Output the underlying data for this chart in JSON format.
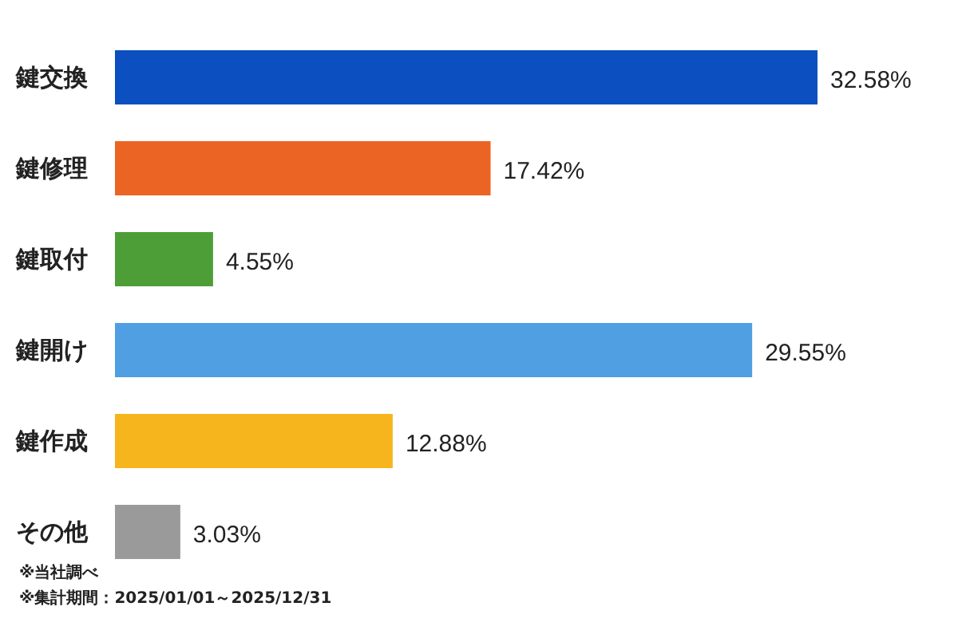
{
  "chart_data": {
    "type": "bar",
    "orientation": "horizontal",
    "categories": [
      "鍵交換",
      "鍵修理",
      "鍵取付",
      "鍵開け",
      "鍵作成",
      "その他"
    ],
    "values": [
      32.58,
      17.42,
      4.55,
      29.55,
      12.88,
      3.03
    ],
    "colors": [
      "#0b4fc0",
      "#ec6424",
      "#4e9e38",
      "#4f9fe2",
      "#f7b51d",
      "#9a9a9a"
    ],
    "value_labels": [
      "32.58%",
      "17.42%",
      "4.55%",
      "29.55%",
      "12.88%",
      "3.03%"
    ],
    "annotations": [
      "※当社調べ",
      "※集計期間：2025/01/01～2025/12/31"
    ]
  }
}
